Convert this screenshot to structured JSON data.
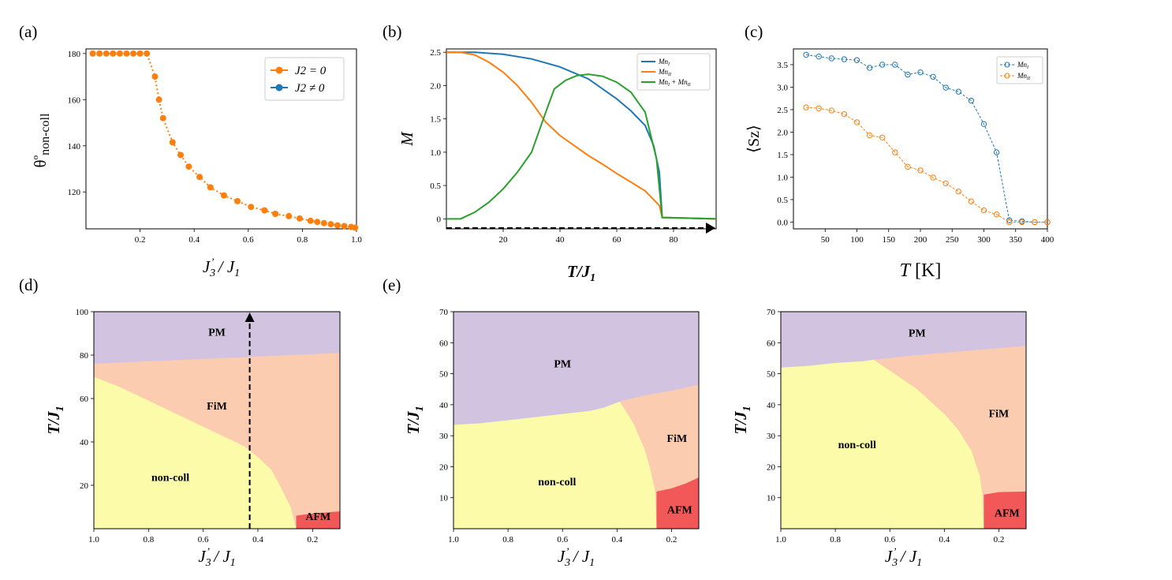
{
  "panel_labels": [
    "(a)",
    "(b)",
    "(c)",
    "(d)",
    "(e)"
  ],
  "chart_data": [
    {
      "id": "a",
      "type": "line",
      "xlabel": "J3' / J1",
      "ylabel": "θ°non-coll",
      "xlim": [
        0.0,
        1.0
      ],
      "ylim": [
        104,
        182
      ],
      "xticks": [
        0.2,
        0.4,
        0.6,
        0.8,
        1.0
      ],
      "yticks": [
        120,
        140,
        160,
        180
      ],
      "legend": {
        "position": "top-right",
        "entries": [
          {
            "label": "J2 = 0",
            "color": "#ff7f0e"
          },
          {
            "label": "J2 ≠ 0",
            "color": "#1f77b4"
          }
        ]
      },
      "series": [
        {
          "name": "J2 = 0",
          "color": "#ff7f0e",
          "x": [
            0.025,
            0.05,
            0.075,
            0.1,
            0.125,
            0.15,
            0.175,
            0.2,
            0.225,
            0.255,
            0.27,
            0.285,
            0.32,
            0.35,
            0.38,
            0.42,
            0.46,
            0.51,
            0.56,
            0.61,
            0.66,
            0.7,
            0.75,
            0.79,
            0.83,
            0.855,
            0.88,
            0.905,
            0.93,
            0.955,
            0.98,
            0.995
          ],
          "y": [
            180,
            180,
            180,
            180,
            180,
            180,
            180,
            180,
            180,
            170,
            160,
            152,
            141.5,
            136,
            131,
            126.5,
            122,
            118.5,
            116,
            113.5,
            112,
            110.5,
            109.5,
            108.5,
            107.5,
            107,
            106.5,
            106,
            105.5,
            105.2,
            104.8,
            104.5
          ]
        },
        {
          "name": "J2 ≠ 0",
          "color": "#1f77b4",
          "x": [],
          "y": []
        }
      ]
    },
    {
      "id": "b",
      "type": "line",
      "xlabel": "T/J1",
      "ylabel": "M",
      "xlim": [
        0,
        95
      ],
      "ylim": [
        -0.15,
        2.55
      ],
      "xticks": [
        20,
        40,
        60,
        80
      ],
      "yticks": [
        0,
        0.5,
        1.0,
        1.5,
        2.0,
        2.5
      ],
      "ytick_labels": [
        "0",
        "0.5",
        "1.0",
        "1.5",
        "2.0",
        "2.5"
      ],
      "legend": {
        "position": "top-right",
        "entries": [
          {
            "label": "MnI",
            "color": "#1f77b4"
          },
          {
            "label": "MnII",
            "color": "#ff7f0e"
          },
          {
            "label": "MnI + MnII",
            "color": "#2ca02c"
          }
        ]
      },
      "series": [
        {
          "name": "MnI",
          "color": "#1f77b4",
          "x": [
            0,
            10,
            20,
            30,
            40,
            50,
            55,
            60,
            65,
            70,
            73,
            75,
            76,
            95
          ],
          "y": [
            2.5,
            2.5,
            2.47,
            2.4,
            2.28,
            2.1,
            1.95,
            1.8,
            1.62,
            1.4,
            1.1,
            0.7,
            0.02,
            0.0
          ]
        },
        {
          "name": "MnII",
          "color": "#ff7f0e",
          "x": [
            0,
            5,
            10,
            15,
            20,
            25,
            30,
            35,
            40,
            45,
            50,
            55,
            60,
            65,
            70,
            75,
            76,
            95
          ],
          "y": [
            2.5,
            2.5,
            2.46,
            2.35,
            2.2,
            2.0,
            1.75,
            1.45,
            1.25,
            1.1,
            0.95,
            0.82,
            0.68,
            0.55,
            0.42,
            0.2,
            0.02,
            0.0
          ]
        },
        {
          "name": "MnI + MnII",
          "color": "#2ca02c",
          "x": [
            0,
            5,
            10,
            15,
            20,
            25,
            30,
            35,
            38,
            42,
            46,
            50,
            55,
            60,
            65,
            70,
            74,
            76,
            95
          ],
          "y": [
            0.0,
            0.0,
            0.1,
            0.25,
            0.45,
            0.7,
            1.0,
            1.6,
            1.95,
            2.08,
            2.15,
            2.17,
            2.14,
            2.05,
            1.9,
            1.6,
            0.9,
            0.02,
            0.0
          ]
        }
      ]
    },
    {
      "id": "c",
      "type": "line",
      "xlabel": "T [K]",
      "ylabel": "⟨Sz⟩",
      "xlim": [
        0,
        400
      ],
      "ylim": [
        -0.15,
        3.85
      ],
      "xticks": [
        50,
        100,
        150,
        200,
        250,
        300,
        350,
        400
      ],
      "yticks": [
        0,
        0.5,
        1.0,
        1.5,
        2.0,
        2.5,
        3.0,
        3.5
      ],
      "ytick_labels": [
        "0.0",
        "0.5",
        "1.0",
        "1.5",
        "2.0",
        "2.5",
        "3.0",
        "3.5"
      ],
      "legend": {
        "position": "top-right",
        "entries": [
          {
            "label": "MnI",
            "color": "#1f77b4"
          },
          {
            "label": "MnII",
            "color": "#ff7f0e"
          }
        ]
      },
      "series": [
        {
          "name": "MnI",
          "color": "#1f77b4",
          "x": [
            20,
            40,
            60,
            80,
            100,
            120,
            140,
            160,
            180,
            200,
            220,
            240,
            260,
            280,
            300,
            320,
            340,
            360,
            380,
            400
          ],
          "y": [
            3.72,
            3.68,
            3.64,
            3.62,
            3.6,
            3.43,
            3.5,
            3.5,
            3.28,
            3.33,
            3.23,
            2.99,
            2.9,
            2.7,
            2.18,
            1.55,
            0.04,
            0.02,
            0.0,
            0.0
          ]
        },
        {
          "name": "MnII",
          "color": "#ff7f0e",
          "x": [
            20,
            40,
            60,
            80,
            100,
            120,
            140,
            160,
            180,
            200,
            220,
            240,
            260,
            280,
            300,
            320,
            340,
            360,
            380,
            400
          ],
          "y": [
            2.55,
            2.53,
            2.48,
            2.4,
            2.22,
            1.93,
            1.88,
            1.55,
            1.23,
            1.15,
            0.99,
            0.86,
            0.68,
            0.46,
            0.26,
            0.17,
            0.0,
            0.0,
            0.0,
            0.0
          ]
        }
      ]
    },
    {
      "id": "d",
      "type": "area",
      "xlabel": "J3' / J1",
      "ylabel": "T/J1",
      "xlim": [
        1.0,
        0.1
      ],
      "ylim": [
        0,
        100
      ],
      "xticks": [
        1.0,
        0.8,
        0.6,
        0.4,
        0.2
      ],
      "yticks": [
        20,
        40,
        60,
        80,
        100
      ],
      "regions": [
        {
          "label": "PM",
          "color": "#d2c3e0",
          "boundary_x": [
            1.0,
            0.1
          ],
          "boundary_y": [
            76,
            81
          ]
        },
        {
          "label": "FiM",
          "color": "#fcccb0"
        },
        {
          "label": "non-coll",
          "color": "#fbfba9",
          "boundary_x": [
            1.0,
            0.9,
            0.8,
            0.7,
            0.6,
            0.5,
            0.45,
            0.4,
            0.35,
            0.32,
            0.3,
            0.28,
            0.27,
            0.26
          ],
          "boundary_y": [
            70,
            65,
            59,
            53,
            47,
            41,
            38,
            33,
            27,
            20,
            15,
            10,
            5,
            0
          ]
        },
        {
          "label": "AFM",
          "color": "#f35858",
          "boundary_x": [
            0.26,
            0.2,
            0.1
          ],
          "boundary_y": [
            6,
            7,
            8
          ]
        }
      ],
      "arrow": {
        "x": 0.43,
        "y_from": 0,
        "y_to": 100
      }
    },
    {
      "id": "e1",
      "type": "area",
      "xlabel": "J3' / J1",
      "ylabel": "T/J1",
      "xlim": [
        1.0,
        0.1
      ],
      "ylim": [
        0,
        70
      ],
      "xticks": [
        1.0,
        0.8,
        0.6,
        0.4,
        0.2
      ],
      "yticks": [
        10,
        20,
        30,
        40,
        50,
        60,
        70
      ],
      "regions": [
        {
          "label": "PM",
          "color": "#d2c3e0"
        },
        {
          "label": "FiM",
          "color": "#fcccb0",
          "boundary_x": [
            0.39,
            0.3,
            0.2,
            0.1
          ],
          "boundary_y": [
            41,
            43,
            44.5,
            46.5
          ]
        },
        {
          "label": "non-coll",
          "color": "#fbfba9",
          "boundary_x": [
            1.0,
            0.9,
            0.8,
            0.7,
            0.6,
            0.5,
            0.45,
            0.39,
            0.34,
            0.3,
            0.28,
            0.26,
            0.255
          ],
          "boundary_y": [
            33.5,
            34,
            35,
            36,
            37,
            38,
            39,
            41,
            34,
            26,
            20,
            12,
            0
          ]
        },
        {
          "label": "AFM",
          "color": "#f35858",
          "boundary_x": [
            0.255,
            0.2,
            0.15,
            0.1
          ],
          "boundary_y": [
            12,
            13,
            14.5,
            16.5
          ]
        }
      ]
    },
    {
      "id": "e2",
      "type": "area",
      "xlabel": "J3' / J1",
      "ylabel": "T/J1",
      "xlim": [
        1.0,
        0.1
      ],
      "ylim": [
        0,
        70
      ],
      "xticks": [
        1.0,
        0.8,
        0.6,
        0.4,
        0.2
      ],
      "yticks": [
        10,
        20,
        30,
        40,
        50,
        60,
        70
      ],
      "regions": [
        {
          "label": "PM",
          "color": "#d2c3e0"
        },
        {
          "label": "FiM",
          "color": "#fcccb0",
          "boundary_x": [
            0.66,
            0.5,
            0.3,
            0.1
          ],
          "boundary_y": [
            54.5,
            56,
            57.5,
            59
          ]
        },
        {
          "label": "non-coll",
          "color": "#fbfba9",
          "boundary_x": [
            1.0,
            0.9,
            0.8,
            0.7,
            0.66,
            0.6,
            0.5,
            0.45,
            0.4,
            0.35,
            0.3,
            0.27,
            0.26,
            0.255
          ],
          "boundary_y": [
            52,
            52.5,
            53.5,
            54,
            54.5,
            51,
            45,
            41,
            37,
            32,
            25,
            17,
            11,
            0
          ]
        },
        {
          "label": "AFM",
          "color": "#f35858",
          "boundary_x": [
            0.255,
            0.2,
            0.1
          ],
          "boundary_y": [
            11,
            11.8,
            12
          ]
        }
      ]
    }
  ]
}
